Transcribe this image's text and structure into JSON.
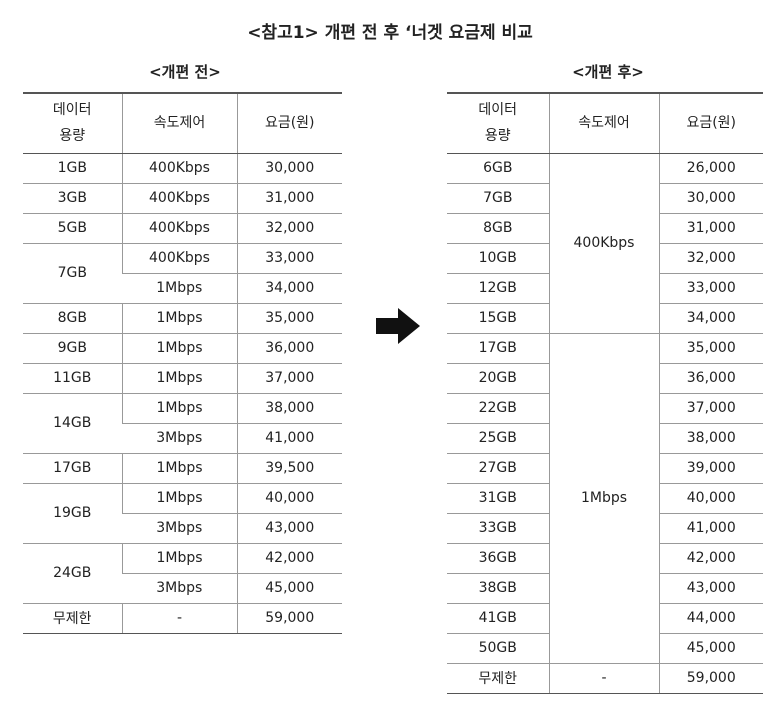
{
  "title": "<참고1> 개편 전 후 ‘너겟 요금제 비교",
  "before": {
    "subtitle": "<개편 전>",
    "headers": [
      "데이터\n용량",
      "속도제어",
      "요금(원)"
    ],
    "groups": [
      {
        "data": "1GB",
        "plans": [
          {
            "speed": "400Kbps",
            "price": "30,000"
          }
        ]
      },
      {
        "data": "3GB",
        "plans": [
          {
            "speed": "400Kbps",
            "price": "31,000"
          }
        ]
      },
      {
        "data": "5GB",
        "plans": [
          {
            "speed": "400Kbps",
            "price": "32,000"
          }
        ]
      },
      {
        "data": "7GB",
        "plans": [
          {
            "speed": "400Kbps",
            "price": "33,000"
          },
          {
            "speed": "1Mbps",
            "price": "34,000"
          }
        ]
      },
      {
        "data": "8GB",
        "plans": [
          {
            "speed": "1Mbps",
            "price": "35,000"
          }
        ]
      },
      {
        "data": "9GB",
        "plans": [
          {
            "speed": "1Mbps",
            "price": "36,000"
          }
        ]
      },
      {
        "data": "11GB",
        "plans": [
          {
            "speed": "1Mbps",
            "price": "37,000"
          }
        ]
      },
      {
        "data": "14GB",
        "plans": [
          {
            "speed": "1Mbps",
            "price": "38,000"
          },
          {
            "speed": "3Mbps",
            "price": "41,000"
          }
        ]
      },
      {
        "data": "17GB",
        "plans": [
          {
            "speed": "1Mbps",
            "price": "39,500"
          }
        ]
      },
      {
        "data": "19GB",
        "plans": [
          {
            "speed": "1Mbps",
            "price": "40,000"
          },
          {
            "speed": "3Mbps",
            "price": "43,000"
          }
        ]
      },
      {
        "data": "24GB",
        "plans": [
          {
            "speed": "1Mbps",
            "price": "42,000"
          },
          {
            "speed": "3Mbps",
            "price": "45,000"
          }
        ]
      },
      {
        "data": "무제한",
        "plans": [
          {
            "speed": "-",
            "price": "59,000"
          }
        ]
      }
    ]
  },
  "after": {
    "subtitle": "<개편 후>",
    "headers": [
      "데이터\n용량",
      "속도제어",
      "요금(원)"
    ],
    "groups": [
      {
        "speed": "400Kbps",
        "plans": [
          {
            "data": "6GB",
            "price": "26,000"
          },
          {
            "data": "7GB",
            "price": "30,000"
          },
          {
            "data": "8GB",
            "price": "31,000"
          },
          {
            "data": "10GB",
            "price": "32,000"
          },
          {
            "data": "12GB",
            "price": "33,000"
          },
          {
            "data": "15GB",
            "price": "34,000"
          }
        ]
      },
      {
        "speed": "1Mbps",
        "plans": [
          {
            "data": "17GB",
            "price": "35,000"
          },
          {
            "data": "20GB",
            "price": "36,000"
          },
          {
            "data": "22GB",
            "price": "37,000"
          },
          {
            "data": "25GB",
            "price": "38,000"
          },
          {
            "data": "27GB",
            "price": "39,000"
          },
          {
            "data": "31GB",
            "price": "40,000"
          },
          {
            "data": "33GB",
            "price": "41,000"
          },
          {
            "data": "36GB",
            "price": "42,000"
          },
          {
            "data": "38GB",
            "price": "43,000"
          },
          {
            "data": "41GB",
            "price": "44,000"
          },
          {
            "data": "50GB",
            "price": "45,000"
          }
        ]
      },
      {
        "speed": "-",
        "plans": [
          {
            "data": "무제한",
            "price": "59,000"
          }
        ]
      }
    ]
  }
}
